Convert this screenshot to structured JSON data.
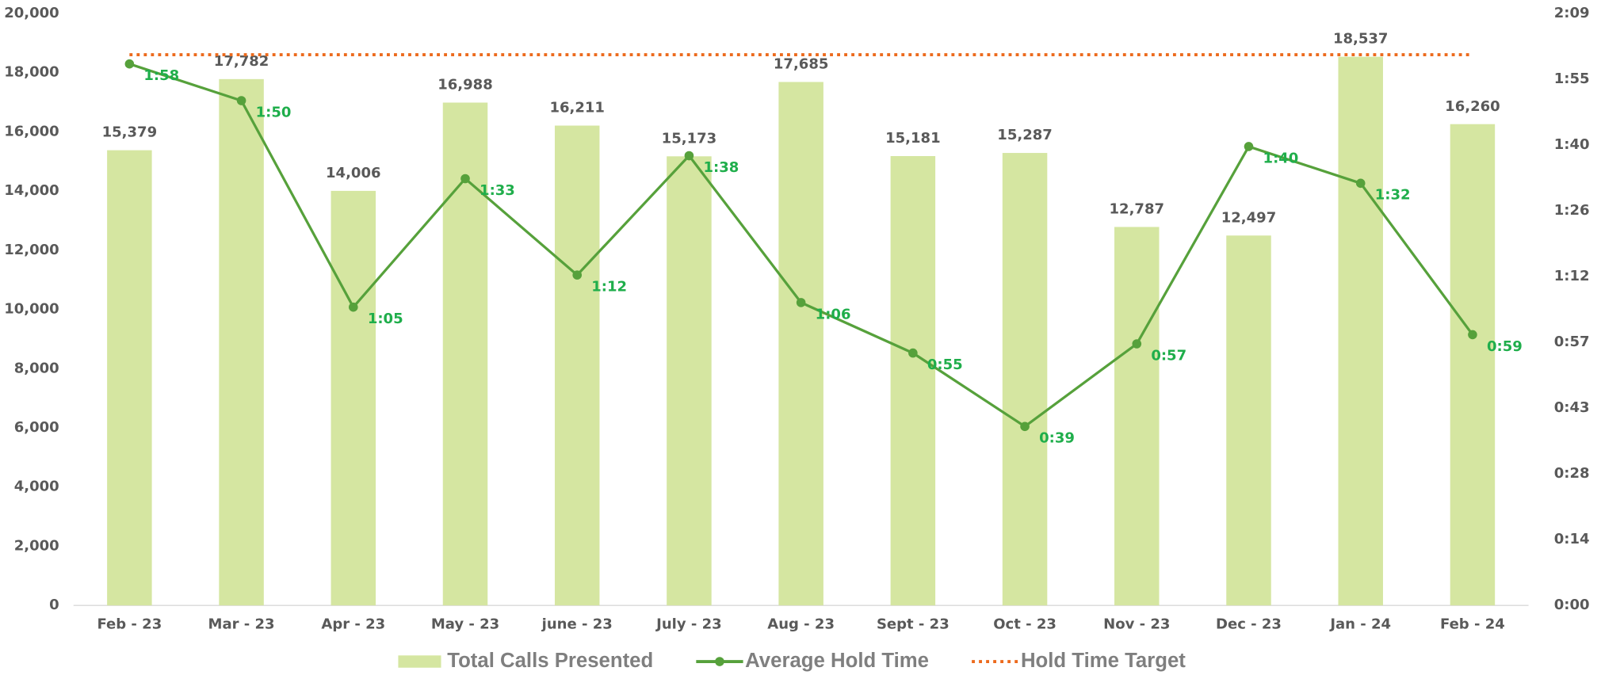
{
  "chart_data": {
    "type": "bar",
    "categories": [
      "Feb - 23",
      "Mar - 23",
      "Apr - 23",
      "May - 23",
      "june - 23",
      "July - 23",
      "Aug - 23",
      "Sept - 23",
      "Oct - 23",
      "Nov - 23",
      "Dec - 23",
      "Jan - 24",
      "Feb - 24"
    ],
    "series": [
      {
        "name": "Total Calls Presented",
        "type": "bar",
        "color": "#d5e6a1",
        "label_color": "#595959",
        "values": [
          15379,
          17782,
          14006,
          16988,
          16211,
          15173,
          17685,
          15181,
          15287,
          12787,
          12497,
          18537,
          16260
        ],
        "value_labels": [
          "15,379",
          "17,782",
          "14,006",
          "16,988",
          "16,211",
          "15,173",
          "17,685",
          "15,181",
          "15,287",
          "12,787",
          "12,497",
          "18,537",
          "16,260"
        ]
      },
      {
        "name": "Average Hold Time",
        "type": "line",
        "axis": "y2",
        "color": "#56a13b",
        "label_color": "#1fae4b",
        "marker": true,
        "values": [
          118,
          110,
          65,
          93,
          72,
          98,
          66,
          55,
          39,
          57,
          100,
          92,
          59
        ],
        "value_labels": [
          "1:58",
          "1:50",
          "1:05",
          "1:33",
          "1:12",
          "1:38",
          "1:06",
          "0:55",
          "0:39",
          "0:57",
          "1:40",
          "1:32",
          "0:59"
        ]
      },
      {
        "name": "Hold Time Target",
        "type": "line",
        "axis": "y2",
        "color": "#ec6a1d",
        "dotted": true,
        "values": [
          120,
          120,
          120,
          120,
          120,
          120,
          120,
          120,
          120,
          120,
          120,
          120,
          120
        ]
      }
    ],
    "ylim": [
      0,
      20000
    ],
    "yticks": [
      0,
      {
        "value": 2000,
        "label": "2,000"
      },
      {
        "value": 4000,
        "label": "4,000"
      },
      {
        "value": 6000,
        "label": "6,000"
      },
      {
        "value": 8000,
        "label": "8,000"
      },
      {
        "value": 10000,
        "label": "10,000"
      },
      {
        "value": 12000,
        "label": "12,000"
      },
      {
        "value": 14000,
        "label": "14,000"
      },
      {
        "value": 16000,
        "label": "16,000"
      },
      {
        "value": 18000,
        "label": "18,000"
      },
      {
        "value": 20000,
        "label": "20,000"
      }
    ],
    "y2lim": [
      0,
      129
    ],
    "y2ticks": [
      {
        "value": 0,
        "label": "0:00"
      },
      {
        "value": 14.333,
        "label": "0:14"
      },
      {
        "value": 28.667,
        "label": "0:28"
      },
      {
        "value": 43,
        "label": "0:43"
      },
      {
        "value": 57.333,
        "label": "0:57"
      },
      {
        "value": 71.667,
        "label": "1:12"
      },
      {
        "value": 86,
        "label": "1:26"
      },
      {
        "value": 100.333,
        "label": "1:40"
      },
      {
        "value": 114.667,
        "label": "1:55"
      },
      {
        "value": 129,
        "label": "2:09"
      }
    ],
    "legend": "bottom"
  }
}
